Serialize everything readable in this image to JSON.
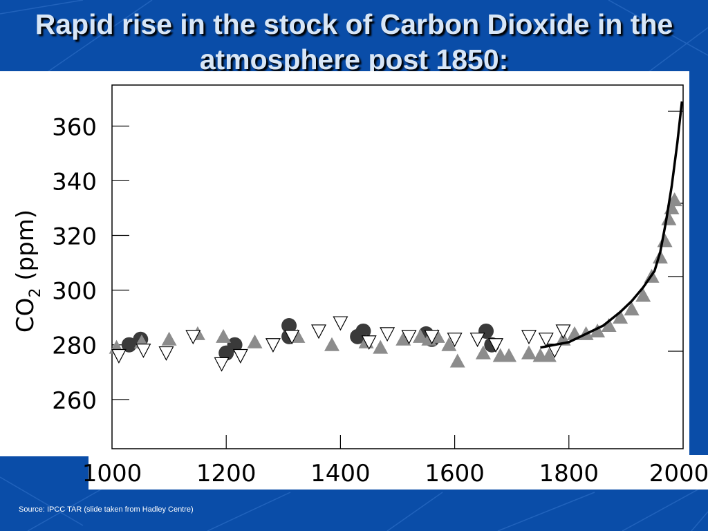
{
  "slide": {
    "title": "Rapid rise in the stock of Carbon Dioxide in the atmosphere post 1850:",
    "source": "Source: IPCC TAR (slide taken from Hadley Centre)",
    "background_color": "#0a4da8"
  },
  "chart_data": {
    "type": "scatter",
    "title": "",
    "ylabel": "CO2 (ppm)",
    "xlabel": "",
    "xlim": [
      1000,
      2000
    ],
    "ylim": [
      242,
      375
    ],
    "x_ticks": [
      1000,
      1200,
      1400,
      1600,
      1800,
      2000
    ],
    "y_ticks": [
      260,
      280,
      300,
      320,
      340,
      360
    ],
    "grid": false,
    "colors": {
      "dark_circles": "#3a3a3a",
      "grey_triangles": "#8c8c8c",
      "open_triangles": "#ffffff",
      "line": "#000000"
    },
    "series": [
      {
        "marker": "circle-dark",
        "points": [
          [
            1030,
            280
          ],
          [
            1050,
            282
          ],
          [
            1200,
            277
          ],
          [
            1215,
            280
          ],
          [
            1310,
            287
          ],
          [
            1310,
            283
          ],
          [
            1430,
            283
          ],
          [
            1440,
            285
          ],
          [
            1550,
            284
          ],
          [
            1560,
            282
          ],
          [
            1655,
            285
          ],
          [
            1665,
            280
          ]
        ]
      },
      {
        "marker": "triangle-up-grey",
        "points": [
          [
            1008,
            279
          ],
          [
            1052,
            281
          ],
          [
            1100,
            282
          ],
          [
            1150,
            284
          ],
          [
            1195,
            283
          ],
          [
            1250,
            281
          ],
          [
            1325,
            283
          ],
          [
            1385,
            280
          ],
          [
            1445,
            281
          ],
          [
            1470,
            279
          ],
          [
            1510,
            282
          ],
          [
            1540,
            283
          ],
          [
            1555,
            282
          ],
          [
            1570,
            283
          ],
          [
            1590,
            280
          ],
          [
            1605,
            274
          ],
          [
            1650,
            277
          ],
          [
            1680,
            276
          ],
          [
            1695,
            276
          ],
          [
            1730,
            277
          ],
          [
            1750,
            276
          ],
          [
            1765,
            276
          ],
          [
            1790,
            282
          ],
          [
            1810,
            284
          ],
          [
            1830,
            284
          ],
          [
            1850,
            285
          ],
          [
            1870,
            287
          ],
          [
            1890,
            290
          ],
          [
            1910,
            293
          ],
          [
            1930,
            298
          ],
          [
            1945,
            305
          ],
          [
            1960,
            312
          ],
          [
            1968,
            318
          ],
          [
            1975,
            326
          ],
          [
            1980,
            330
          ],
          [
            1985,
            333
          ]
        ]
      },
      {
        "marker": "triangle-down-open",
        "points": [
          [
            1012,
            276
          ],
          [
            1055,
            278
          ],
          [
            1095,
            277
          ],
          [
            1142,
            283
          ],
          [
            1192,
            273
          ],
          [
            1225,
            276
          ],
          [
            1282,
            280
          ],
          [
            1315,
            283
          ],
          [
            1362,
            285
          ],
          [
            1400,
            288
          ],
          [
            1450,
            281
          ],
          [
            1482,
            284
          ],
          [
            1520,
            283
          ],
          [
            1560,
            283
          ],
          [
            1600,
            282
          ],
          [
            1640,
            282
          ],
          [
            1672,
            280
          ],
          [
            1730,
            283
          ],
          [
            1760,
            282
          ],
          [
            1775,
            278
          ],
          [
            1790,
            285
          ]
        ]
      },
      {
        "marker": "line",
        "points": [
          [
            1750,
            279
          ],
          [
            1800,
            281
          ],
          [
            1830,
            284
          ],
          [
            1860,
            287
          ],
          [
            1890,
            292
          ],
          [
            1910,
            296
          ],
          [
            1930,
            301
          ],
          [
            1950,
            307
          ],
          [
            1960,
            314
          ],
          [
            1970,
            325
          ],
          [
            1980,
            338
          ],
          [
            1990,
            354
          ],
          [
            1998,
            369
          ]
        ]
      }
    ]
  }
}
